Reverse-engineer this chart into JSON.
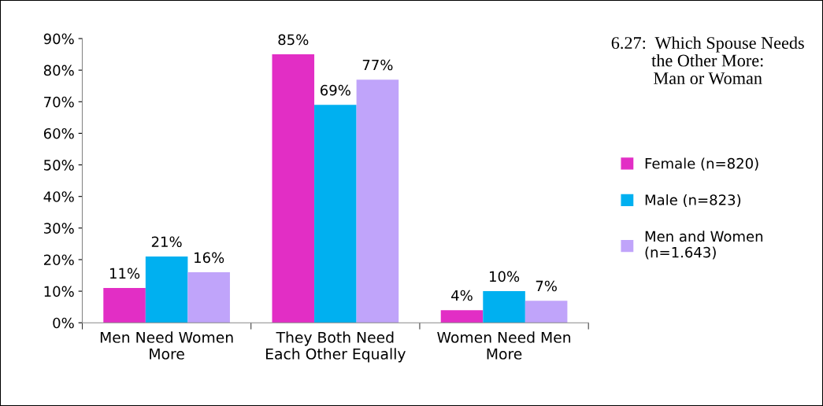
{
  "chart_data": {
    "type": "bar",
    "title": "6.27:  Which Spouse Needs\nthe Other More:\nMan or Woman",
    "categories": [
      "Men Need Women More",
      "They Both Need Each Other Equally",
      "Women Need Men More"
    ],
    "series": [
      {
        "name": "Female (n=820)",
        "color": "#e22ec5",
        "values": [
          11,
          85,
          4
        ],
        "value_labels": [
          "11%",
          "85%",
          "4%"
        ]
      },
      {
        "name": "Male (n=823)",
        "color": "#00b0f0",
        "values": [
          21,
          69,
          10
        ],
        "value_labels": [
          "21%",
          "69%",
          "10%"
        ]
      },
      {
        "name": "Men and Women (n=1.643)",
        "color": "#c0a4fa",
        "values": [
          16,
          77,
          7
        ],
        "value_labels": [
          "16%",
          "77%",
          "7%"
        ]
      }
    ],
    "ylim": [
      0,
      90
    ],
    "yticks": [
      {
        "value": 0,
        "label": "0%"
      },
      {
        "value": 10,
        "label": "10%"
      },
      {
        "value": 20,
        "label": "20%"
      },
      {
        "value": 30,
        "label": "30%"
      },
      {
        "value": 40,
        "label": "40%"
      },
      {
        "value": 50,
        "label": "50%"
      },
      {
        "value": 60,
        "label": "60%"
      },
      {
        "value": 70,
        "label": "70%"
      },
      {
        "value": 80,
        "label": "80%"
      },
      {
        "value": 90,
        "label": "90%"
      }
    ],
    "grid": false,
    "legend": "right"
  }
}
